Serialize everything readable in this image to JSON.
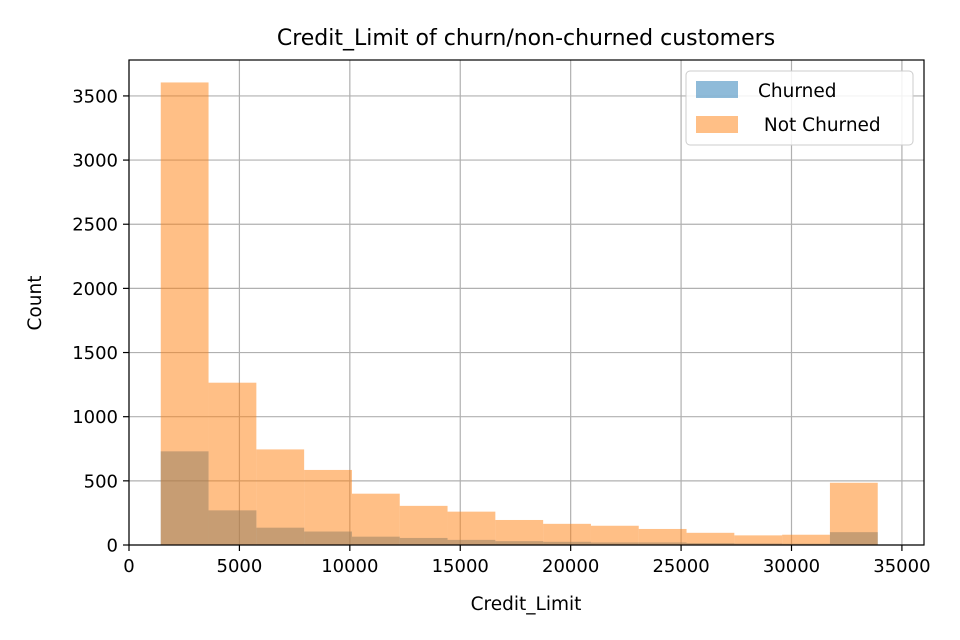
{
  "chart_data": {
    "type": "bar",
    "title": "Credit_Limit of churn/non-churned customers",
    "xlabel": "Credit_Limit",
    "ylabel": "Count",
    "xlim": [
      0,
      36000
    ],
    "ylim": [
      0,
      3780
    ],
    "xticks": [
      0,
      5000,
      10000,
      15000,
      20000,
      25000,
      30000,
      35000
    ],
    "yticks": [
      0,
      500,
      1000,
      1500,
      2000,
      2500,
      3000,
      3500
    ],
    "grid": true,
    "legend_position": "top-right",
    "bin_edges": [
      1438,
      3602,
      5767,
      7931,
      10096,
      12260,
      14425,
      16589,
      18754,
      20918,
      23082,
      25247,
      27411,
      29576,
      31740,
      33905
    ],
    "series": [
      {
        "name": "Churned",
        "color": "#1f77b4",
        "values": [
          730,
          270,
          135,
          105,
          65,
          55,
          40,
          30,
          25,
          20,
          20,
          15,
          12,
          10,
          100
        ]
      },
      {
        "name": " Not Churned",
        "color": "#ff7f0e",
        "values": [
          3605,
          1265,
          745,
          585,
          400,
          305,
          260,
          195,
          165,
          150,
          125,
          95,
          75,
          80,
          485
        ]
      }
    ]
  }
}
